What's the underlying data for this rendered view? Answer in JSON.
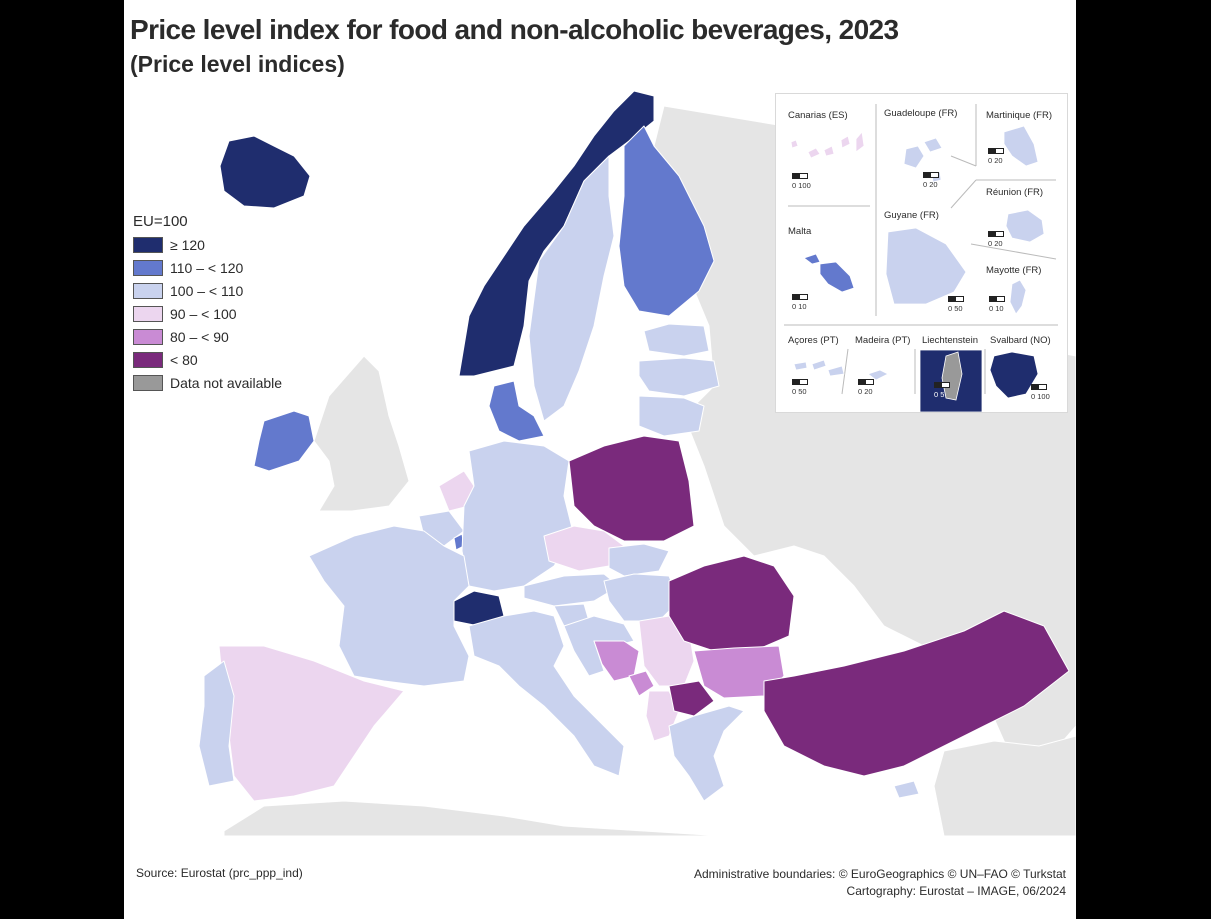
{
  "title": "Price level index for food and non-alcoholic beverages, 2023",
  "subtitle": "(Price level indices)",
  "legend": {
    "title": "EU=100",
    "classes": [
      {
        "label": "≥ 120",
        "color": "#1f2d6e"
      },
      {
        "label": "110 – < 120",
        "color": "#6379cd"
      },
      {
        "label": "100 – < 110",
        "color": "#c9d2ee"
      },
      {
        "label": "90 – < 100",
        "color": "#ecd6ef"
      },
      {
        "label": "80 – < 90",
        "color": "#c98bd4"
      },
      {
        "label": "< 80",
        "color": "#7a2a7c"
      },
      {
        "label": "Data not available",
        "color": "#999999"
      }
    ]
  },
  "colors": {
    "non_eu_land": "#e5e5e5",
    "sea": "#ffffff",
    "border": "#ffffff"
  },
  "regions": {
    "Iceland": "≥ 120",
    "Norway": "≥ 120",
    "Switzerland": "≥ 120",
    "Finland": "110 – < 120",
    "Denmark": "110 – < 120",
    "Ireland": "110 – < 120",
    "Luxembourg": "110 – < 120",
    "Sweden": "100 – < 110",
    "Estonia": "100 – < 110",
    "Latvia": "100 – < 110",
    "Lithuania": "100 – < 110",
    "Germany": "100 – < 110",
    "France": "100 – < 110",
    "Belgium": "100 – < 110",
    "Austria": "100 – < 110",
    "Italy": "100 – < 110",
    "Slovakia": "100 – < 110",
    "Hungary": "100 – < 110",
    "Slovenia": "100 – < 110",
    "Croatia": "100 – < 110",
    "Greece": "100 – < 110",
    "Portugal": "100 – < 110",
    "Cyprus": "100 – < 110",
    "Netherlands": "90 – < 100",
    "Czechia": "90 – < 100",
    "Spain": "90 – < 100",
    "Serbia": "90 – < 100",
    "Albania": "90 – < 100",
    "Bulgaria": "80 – < 90",
    "Bosnia and Herzegovina": "80 – < 90",
    "Montenegro": "80 – < 90",
    "Poland": "< 80",
    "Romania": "< 80",
    "Turkey": "< 80",
    "North Macedonia": "< 80"
  },
  "insets": [
    {
      "name": "Canarias (ES)",
      "scale": "0   100"
    },
    {
      "name": "Guadeloupe (FR)",
      "scale": "0   20"
    },
    {
      "name": "Martinique (FR)",
      "scale": "0   20"
    },
    {
      "name": "Réunion (FR)",
      "scale": "0   20"
    },
    {
      "name": "Malta",
      "scale": "0   10"
    },
    {
      "name": "Guyane (FR)",
      "scale": "0  50"
    },
    {
      "name": "Mayotte (FR)",
      "scale": "0  10"
    },
    {
      "name": "Açores (PT)",
      "scale": "0   50"
    },
    {
      "name": "Madeira (PT)",
      "scale": "0  20"
    },
    {
      "name": "Liechtenstein",
      "scale": "0 5"
    },
    {
      "name": "Svalbard (NO)",
      "scale": "0 100"
    }
  ],
  "footer": {
    "source": "Source: Eurostat (prc_ppp_ind)",
    "boundaries": "Administrative boundaries: © EuroGeographics © UN–FAO © Turkstat",
    "cartography": "Cartography: Eurostat – IMAGE, 06/2024"
  }
}
